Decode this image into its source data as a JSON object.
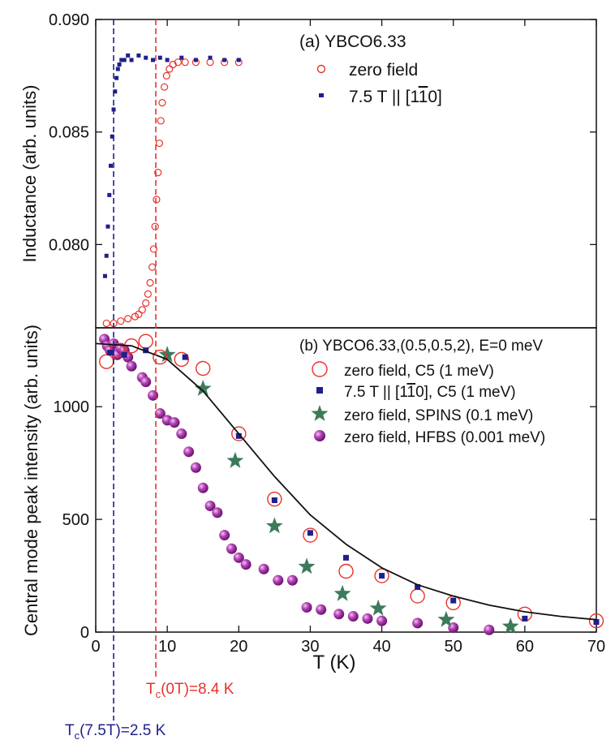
{
  "colors": {
    "red": "#e8322a",
    "blue": "#1f1f8c",
    "green": "#3d7a5a",
    "purple": "#9b2f9e",
    "black": "#111111"
  },
  "annotations": {
    "tc_zero": "T",
    "tc_zero_sub": "c",
    "tc_zero_rest": "(0T)=8.4 K",
    "tc_field": "T",
    "tc_field_sub": "c",
    "tc_field_rest": "(7.5T)=2.5 K",
    "tc_zero_value": 8.4,
    "tc_field_value": 2.5
  },
  "chart_data": [
    {
      "type": "scatter",
      "panel": "a",
      "title": "(a) YBCO6.33",
      "xlabel": "",
      "ylabel": "Inductance (arb. units)",
      "xlim": [
        0,
        70
      ],
      "ylim": [
        0.0763,
        0.09
      ],
      "yticks": [
        "0.080",
        "0.085",
        "0.090"
      ],
      "ytick_values": [
        0.08,
        0.085,
        0.09
      ],
      "legend_position": "top-right",
      "series": [
        {
          "name": "zero field",
          "marker": "open-circle",
          "color": "red",
          "x": [
            1.5,
            2.5,
            3.5,
            4.5,
            5.5,
            6.0,
            6.5,
            7.0,
            7.3,
            7.6,
            7.9,
            8.1,
            8.3,
            8.5,
            8.7,
            8.9,
            9.1,
            9.3,
            9.6,
            9.9,
            10.3,
            10.8,
            11.5,
            12.5,
            14,
            16,
            18,
            20
          ],
          "y": [
            0.0765,
            0.0765,
            0.0766,
            0.0767,
            0.0768,
            0.0769,
            0.0771,
            0.0774,
            0.0778,
            0.0783,
            0.079,
            0.0798,
            0.0808,
            0.082,
            0.0832,
            0.0845,
            0.0855,
            0.0863,
            0.087,
            0.0875,
            0.0878,
            0.088,
            0.0881,
            0.0881,
            0.0881,
            0.0881,
            0.0881,
            0.0881
          ]
        },
        {
          "name": "7.5 T || [1-10]",
          "marker": "small-square",
          "color": "blue",
          "x": [
            1.3,
            1.5,
            1.7,
            1.9,
            2.1,
            2.3,
            2.5,
            2.7,
            2.9,
            3.1,
            3.3,
            3.6,
            4.0,
            4.5,
            5.0,
            6.0,
            7.0,
            8.0,
            9.0,
            10,
            12,
            14,
            16,
            18,
            20
          ],
          "y": [
            0.0786,
            0.0795,
            0.0808,
            0.0822,
            0.0835,
            0.0848,
            0.086,
            0.0868,
            0.0874,
            0.0878,
            0.088,
            0.0882,
            0.0882,
            0.0884,
            0.0882,
            0.0884,
            0.0883,
            0.0882,
            0.0883,
            0.0882,
            0.0883,
            0.0882,
            0.0883,
            0.0882,
            0.0882
          ]
        }
      ]
    },
    {
      "type": "scatter",
      "panel": "b",
      "title": "(b) YBCO6.33,(0.5,0.5,2), E=0 meV",
      "xlabel": "T (K)",
      "ylabel": "Central mode peak intensity (arb. units)",
      "xlim": [
        0,
        70
      ],
      "ylim": [
        0,
        1350
      ],
      "xticks": [
        "0",
        "10",
        "20",
        "30",
        "40",
        "50",
        "60",
        "70"
      ],
      "xtick_values": [
        0,
        10,
        20,
        30,
        40,
        50,
        60,
        70
      ],
      "yticks": [
        "0",
        "500",
        "1000"
      ],
      "ytick_values": [
        0,
        500,
        1000
      ],
      "legend_position": "top-right",
      "series": [
        {
          "name": "zero field, C5 (1 meV)",
          "marker": "open-circle",
          "color": "red",
          "x": [
            1.5,
            3,
            5,
            7,
            9,
            12,
            15,
            20,
            25,
            30,
            35,
            40,
            45,
            50,
            60,
            70
          ],
          "y": [
            1200,
            1250,
            1270,
            1290,
            1220,
            1210,
            1170,
            880,
            590,
            430,
            270,
            250,
            160,
            130,
            80,
            50
          ]
        },
        {
          "name": "7.5 T || [1-10], C5 (1 meV)",
          "marker": "filled-square",
          "color": "blue",
          "x": [
            2,
            4,
            7,
            12.5,
            20,
            25,
            30,
            35,
            40,
            45,
            50,
            60,
            70
          ],
          "y": [
            1240,
            1230,
            1250,
            1220,
            870,
            585,
            440,
            330,
            250,
            200,
            140,
            60,
            45
          ]
        },
        {
          "name": "zero field, SPINS (0.1 meV)",
          "marker": "star",
          "color": "green",
          "x": [
            10,
            15,
            19.5,
            25,
            29.5,
            34.5,
            39.5,
            49,
            58
          ],
          "y": [
            1230,
            1080,
            760,
            470,
            290,
            170,
            105,
            55,
            25
          ]
        },
        {
          "name": "zero field, HFBS (0.001 meV)",
          "marker": "sphere",
          "color": "purple",
          "x": [
            1.2,
            1.6,
            2.0,
            2.5,
            3.0,
            3.5,
            4.0,
            4.5,
            5.0,
            6.5,
            7.0,
            8.0,
            9.0,
            10,
            11,
            12,
            13,
            14,
            15,
            16,
            17,
            18,
            19,
            20,
            21,
            23.5,
            25.5,
            27.5,
            29.5,
            31.5,
            34,
            36,
            38,
            40,
            45,
            50,
            55
          ],
          "y": [
            1300,
            1270,
            1250,
            1280,
            1230,
            1260,
            1250,
            1220,
            1180,
            1130,
            1110,
            1050,
            970,
            940,
            930,
            880,
            800,
            730,
            640,
            560,
            530,
            430,
            370,
            330,
            300,
            280,
            230,
            230,
            110,
            100,
            80,
            70,
            60,
            50,
            40,
            20,
            10
          ]
        }
      ],
      "fit_curve": {
        "color": "black",
        "x": [
          0,
          5,
          10,
          15,
          20,
          25,
          30,
          35,
          40,
          45,
          50,
          55,
          60,
          65,
          70
        ],
        "y": [
          1280,
          1270,
          1210,
          1070,
          880,
          690,
          520,
          390,
          285,
          210,
          160,
          120,
          90,
          70,
          55
        ]
      }
    }
  ]
}
